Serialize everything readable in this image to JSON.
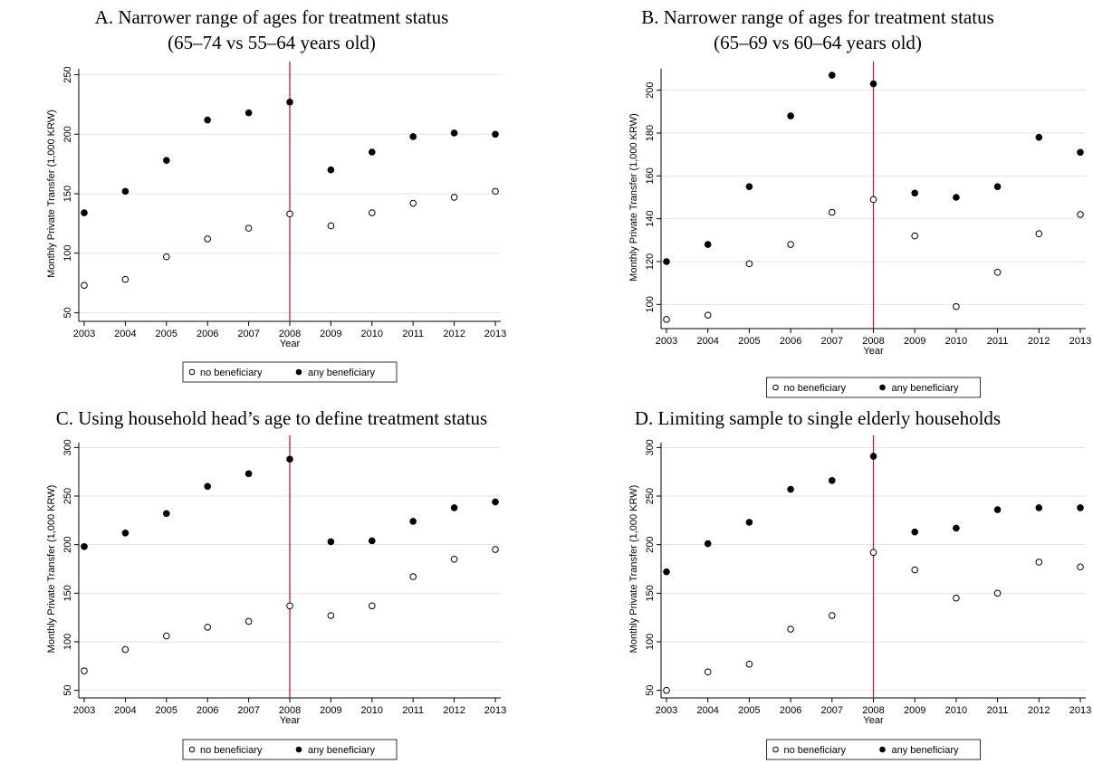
{
  "legend": {
    "series_labels": [
      "no beneficiary",
      "any beneficiary"
    ]
  },
  "colors": {
    "reference_line": "#c2185b",
    "grid": "#e3e3e3",
    "markers": "#000000"
  },
  "chart_data": [
    {
      "type": "scatter",
      "title_line1": "A. Narrower range of ages for treatment status",
      "title_line2": "(65–74 vs 55–64 years old)",
      "xlabel": "Year",
      "ylabel": "Monthly Private Transfer (1,000 KRW)",
      "x": [
        2003,
        2004,
        2005,
        2006,
        2007,
        2008,
        2009,
        2010,
        2011,
        2012,
        2013
      ],
      "xlim": [
        2003,
        2013
      ],
      "ylim": [
        45,
        255
      ],
      "yticks": [
        50,
        100,
        150,
        200,
        250
      ],
      "reference_x": 2008,
      "grid": true,
      "legend_position": "bottom",
      "series": [
        {
          "name": "no beneficiary",
          "marker": "hollow-circle",
          "values": [
            73,
            78,
            97,
            112,
            121,
            133,
            123,
            134,
            142,
            147,
            152
          ]
        },
        {
          "name": "any beneficiary",
          "marker": "filled-circle",
          "values": [
            134,
            152,
            178,
            212,
            218,
            227,
            170,
            185,
            198,
            201,
            200
          ]
        }
      ]
    },
    {
      "type": "scatter",
      "title_line1": "B. Narrower range of ages for treatment status",
      "title_line2": "(65–69 vs 60–64 years old)",
      "xlabel": "Year",
      "ylabel": "Monthly Private Transfer (1,000 KRW)",
      "x": [
        2003,
        2004,
        2005,
        2006,
        2007,
        2008,
        2009,
        2010,
        2011,
        2012,
        2013
      ],
      "xlim": [
        2003,
        2013
      ],
      "ylim": [
        90,
        210
      ],
      "yticks": [
        100,
        120,
        140,
        160,
        180,
        200
      ],
      "reference_x": 2008,
      "grid": true,
      "legend_position": "bottom",
      "series": [
        {
          "name": "no beneficiary",
          "marker": "hollow-circle",
          "values": [
            93,
            95,
            119,
            128,
            143,
            149,
            132,
            99,
            115,
            133,
            142
          ]
        },
        {
          "name": "any beneficiary",
          "marker": "filled-circle",
          "values": [
            120,
            128,
            155,
            188,
            207,
            203,
            152,
            150,
            155,
            178,
            171
          ]
        }
      ]
    },
    {
      "type": "scatter",
      "title_line1": "C. Using household head’s age to define treatment status",
      "title_line2": "",
      "xlabel": "Year",
      "ylabel": "Monthly Private Transfer (1,000 KRW)",
      "x": [
        2003,
        2004,
        2005,
        2006,
        2007,
        2008,
        2009,
        2010,
        2011,
        2012,
        2013
      ],
      "xlim": [
        2003,
        2013
      ],
      "ylim": [
        45,
        305
      ],
      "yticks": [
        50,
        100,
        150,
        200,
        250,
        300
      ],
      "reference_x": 2008,
      "grid": true,
      "legend_position": "bottom",
      "series": [
        {
          "name": "no beneficiary",
          "marker": "hollow-circle",
          "values": [
            70,
            92,
            106,
            115,
            121,
            137,
            127,
            137,
            167,
            185,
            195
          ]
        },
        {
          "name": "any beneficiary",
          "marker": "filled-circle",
          "values": [
            198,
            212,
            232,
            260,
            273,
            288,
            203,
            204,
            224,
            238,
            244
          ]
        }
      ]
    },
    {
      "type": "scatter",
      "title_line1": "D. Limiting sample to single elderly households",
      "title_line2": "",
      "xlabel": "Year",
      "ylabel": "Monthly Private Transfer (1,000 KRW)",
      "x": [
        2003,
        2004,
        2005,
        2006,
        2007,
        2008,
        2009,
        2010,
        2011,
        2012,
        2013
      ],
      "xlim": [
        2003,
        2013
      ],
      "ylim": [
        45,
        305
      ],
      "yticks": [
        50,
        100,
        150,
        200,
        250,
        300
      ],
      "reference_x": 2008,
      "grid": true,
      "legend_position": "bottom",
      "series": [
        {
          "name": "no beneficiary",
          "marker": "hollow-circle",
          "values": [
            50,
            69,
            77,
            113,
            127,
            192,
            174,
            145,
            150,
            182,
            177
          ]
        },
        {
          "name": "any beneficiary",
          "marker": "filled-circle",
          "values": [
            172,
            201,
            223,
            257,
            266,
            291,
            213,
            217,
            236,
            238,
            238
          ]
        }
      ]
    }
  ]
}
